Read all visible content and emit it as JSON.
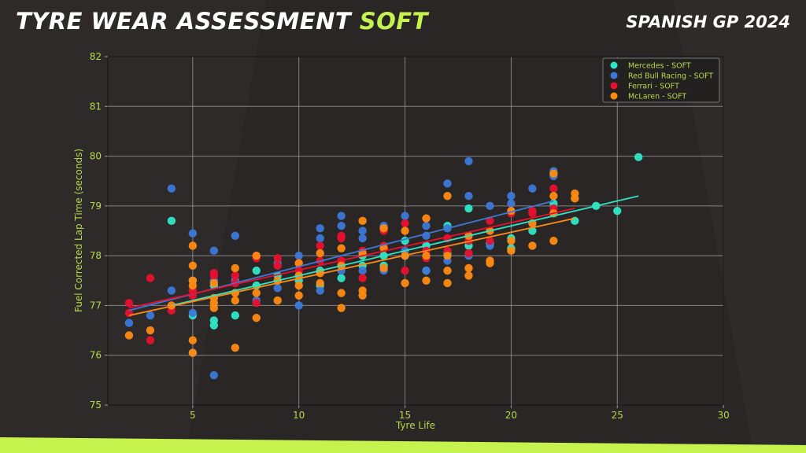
{
  "header": {
    "title_main": "TYRE WEAR ASSESSMENT",
    "title_accent": "SOFT",
    "race": "SPANISH GP 2024"
  },
  "colors": {
    "background": "#2a2626",
    "accent": "#c6f24e",
    "title": "#ffffff",
    "grid": "#9a9a9a",
    "axis_text": "#b5d94a",
    "Mercedes": "#2ee6c6",
    "Red Bull Racing": "#3c78d8",
    "Ferrari": "#e8102e",
    "McLaren": "#ff8a12"
  },
  "chart_data": {
    "type": "scatter",
    "title": "TYRE WEAR ASSESSMENT SOFT",
    "subtitle": "SPANISH GP 2024",
    "xlabel": "Tyre Life",
    "ylabel": "Fuel Corrected Lap Time (seconds)",
    "xlim": [
      1,
      30
    ],
    "ylim": [
      75,
      82
    ],
    "xticks": [
      5,
      10,
      15,
      20,
      25,
      30
    ],
    "yticks": [
      75,
      76,
      77,
      78,
      79,
      80,
      81,
      82
    ],
    "grid": true,
    "legend_position": "upper right",
    "legend": [
      "Mercedes - SOFT",
      "Red Bull Racing - SOFT",
      "Ferrari - SOFT",
      "McLaren - SOFT"
    ],
    "series": [
      {
        "name": "Mercedes - SOFT",
        "color": "#2ee6c6",
        "trend": {
          "x": [
            4,
            26
          ],
          "y": [
            77.0,
            79.2
          ]
        },
        "points": [
          [
            4,
            78.7
          ],
          [
            5,
            77.5
          ],
          [
            5,
            76.8
          ],
          [
            6,
            76.7
          ],
          [
            6,
            76.6
          ],
          [
            6,
            77.4
          ],
          [
            7,
            76.8
          ],
          [
            7,
            77.5
          ],
          [
            8,
            77.7
          ],
          [
            8,
            77.4
          ],
          [
            9,
            77.6
          ],
          [
            10,
            77.5
          ],
          [
            11,
            77.7
          ],
          [
            11,
            77.4
          ],
          [
            12,
            77.55
          ],
          [
            12,
            77.8
          ],
          [
            13,
            77.8
          ],
          [
            13,
            78.0
          ],
          [
            14,
            78.0
          ],
          [
            14,
            77.8
          ],
          [
            15,
            78.0
          ],
          [
            15,
            78.3
          ],
          [
            16,
            78.2
          ],
          [
            16,
            77.7
          ],
          [
            17,
            78.6
          ],
          [
            17,
            78.05
          ],
          [
            18,
            78.95
          ],
          [
            18,
            78.2
          ],
          [
            19,
            78.25
          ],
          [
            20,
            78.35
          ],
          [
            20,
            78.15
          ],
          [
            21,
            78.5
          ],
          [
            22,
            79.05
          ],
          [
            23,
            78.7
          ],
          [
            24,
            79.0
          ],
          [
            25,
            78.9
          ],
          [
            26,
            79.98
          ]
        ]
      },
      {
        "name": "Red Bull Racing - SOFT",
        "color": "#3c78d8",
        "trend": {
          "x": [
            2,
            22
          ],
          "y": [
            76.9,
            79.1
          ]
        },
        "points": [
          [
            2,
            76.65
          ],
          [
            3,
            76.8
          ],
          [
            4,
            79.35
          ],
          [
            4,
            77.3
          ],
          [
            5,
            78.45
          ],
          [
            5,
            76.85
          ],
          [
            5,
            76.05
          ],
          [
            6,
            78.1
          ],
          [
            6,
            77.5
          ],
          [
            6,
            75.6
          ],
          [
            7,
            78.4
          ],
          [
            7,
            77.5
          ],
          [
            8,
            78.0
          ],
          [
            8,
            77.1
          ],
          [
            9,
            77.85
          ],
          [
            9,
            77.35
          ],
          [
            10,
            78.0
          ],
          [
            10,
            77.0
          ],
          [
            11,
            78.55
          ],
          [
            11,
            78.35
          ],
          [
            11,
            77.3
          ],
          [
            12,
            78.6
          ],
          [
            12,
            78.8
          ],
          [
            12,
            77.7
          ],
          [
            13,
            78.5
          ],
          [
            13,
            78.35
          ],
          [
            13,
            77.7
          ],
          [
            14,
            78.6
          ],
          [
            14,
            77.7
          ],
          [
            15,
            78.8
          ],
          [
            15,
            78.1
          ],
          [
            16,
            78.6
          ],
          [
            16,
            78.4
          ],
          [
            16,
            77.7
          ],
          [
            17,
            79.45
          ],
          [
            17,
            78.55
          ],
          [
            17,
            77.9
          ],
          [
            18,
            79.9
          ],
          [
            18,
            79.2
          ],
          [
            18,
            78.0
          ],
          [
            19,
            79.0
          ],
          [
            19,
            78.2
          ],
          [
            20,
            79.2
          ],
          [
            20,
            79.05
          ],
          [
            21,
            79.35
          ],
          [
            22,
            79.7
          ],
          [
            22,
            79.6
          ]
        ]
      },
      {
        "name": "Ferrari - SOFT",
        "color": "#e8102e",
        "trend": {
          "x": [
            2,
            23
          ],
          "y": [
            76.95,
            78.95
          ]
        },
        "points": [
          [
            2,
            77.05
          ],
          [
            2,
            76.85
          ],
          [
            3,
            77.55
          ],
          [
            3,
            76.3
          ],
          [
            4,
            76.9
          ],
          [
            5,
            77.3
          ],
          [
            5,
            77.2
          ],
          [
            6,
            77.65
          ],
          [
            6,
            77.6
          ],
          [
            7,
            77.6
          ],
          [
            7,
            77.45
          ],
          [
            8,
            78.0
          ],
          [
            8,
            77.95
          ],
          [
            8,
            77.05
          ],
          [
            9,
            77.95
          ],
          [
            9,
            77.8
          ],
          [
            10,
            77.85
          ],
          [
            10,
            77.7
          ],
          [
            11,
            78.2
          ],
          [
            11,
            77.9
          ],
          [
            12,
            78.4
          ],
          [
            12,
            78.35
          ],
          [
            12,
            77.9
          ],
          [
            13,
            78.1
          ],
          [
            13,
            77.55
          ],
          [
            14,
            78.5
          ],
          [
            14,
            78.2
          ],
          [
            15,
            78.65
          ],
          [
            15,
            77.7
          ],
          [
            16,
            78.1
          ],
          [
            16,
            77.95
          ],
          [
            17,
            78.35
          ],
          [
            17,
            78.1
          ],
          [
            18,
            78.3
          ],
          [
            18,
            78.05
          ],
          [
            19,
            78.7
          ],
          [
            19,
            78.3
          ],
          [
            20,
            78.9
          ],
          [
            20,
            78.85
          ],
          [
            21,
            78.9
          ],
          [
            21,
            78.85
          ],
          [
            22,
            79.35
          ],
          [
            22,
            78.95
          ]
        ]
      },
      {
        "name": "McLaren - SOFT",
        "color": "#ff8a12",
        "trend": {
          "x": [
            2,
            23
          ],
          "y": [
            76.8,
            78.75
          ]
        },
        "points": [
          [
            2,
            76.4
          ],
          [
            3,
            76.5
          ],
          [
            4,
            77.0
          ],
          [
            5,
            78.2
          ],
          [
            5,
            77.8
          ],
          [
            5,
            77.5
          ],
          [
            5,
            77.4
          ],
          [
            5,
            76.3
          ],
          [
            5,
            76.05
          ],
          [
            6,
            77.45
          ],
          [
            6,
            77.15
          ],
          [
            6,
            77.05
          ],
          [
            6,
            76.95
          ],
          [
            7,
            77.75
          ],
          [
            7,
            77.25
          ],
          [
            7,
            77.1
          ],
          [
            7,
            76.15
          ],
          [
            8,
            78.0
          ],
          [
            8,
            77.25
          ],
          [
            8,
            76.75
          ],
          [
            9,
            77.5
          ],
          [
            9,
            77.1
          ],
          [
            10,
            77.85
          ],
          [
            10,
            77.6
          ],
          [
            10,
            77.4
          ],
          [
            10,
            77.2
          ],
          [
            11,
            78.05
          ],
          [
            11,
            77.65
          ],
          [
            11,
            77.45
          ],
          [
            12,
            78.15
          ],
          [
            12,
            77.8
          ],
          [
            12,
            77.25
          ],
          [
            12,
            76.95
          ],
          [
            13,
            78.7
          ],
          [
            13,
            78.05
          ],
          [
            13,
            77.3
          ],
          [
            13,
            77.2
          ],
          [
            14,
            78.55
          ],
          [
            14,
            78.15
          ],
          [
            14,
            77.75
          ],
          [
            15,
            78.5
          ],
          [
            15,
            78.0
          ],
          [
            15,
            77.45
          ],
          [
            16,
            78.75
          ],
          [
            16,
            78.0
          ],
          [
            16,
            77.5
          ],
          [
            17,
            79.2
          ],
          [
            17,
            78.0
          ],
          [
            17,
            77.7
          ],
          [
            17,
            77.45
          ],
          [
            18,
            78.4
          ],
          [
            18,
            77.75
          ],
          [
            18,
            77.6
          ],
          [
            19,
            78.5
          ],
          [
            19,
            77.9
          ],
          [
            19,
            77.85
          ],
          [
            20,
            78.9
          ],
          [
            20,
            78.3
          ],
          [
            20,
            78.1
          ],
          [
            21,
            78.65
          ],
          [
            21,
            78.2
          ],
          [
            22,
            79.65
          ],
          [
            22,
            79.2
          ],
          [
            22,
            78.85
          ],
          [
            22,
            78.3
          ],
          [
            23,
            79.25
          ],
          [
            23,
            79.15
          ]
        ]
      }
    ]
  }
}
